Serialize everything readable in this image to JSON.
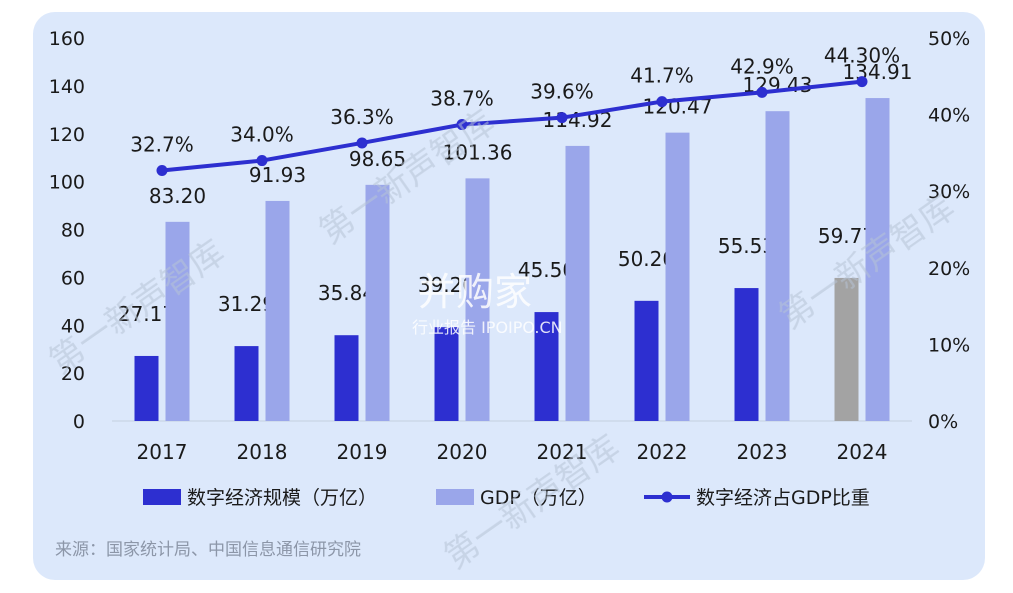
{
  "chart_data": {
    "type": "bar",
    "categories": [
      "2017",
      "2018",
      "2019",
      "2020",
      "2021",
      "2022",
      "2023",
      "2024"
    ],
    "series": [
      {
        "name": "数字经济规模（万亿）",
        "type": "bar",
        "axis": "left",
        "values": [
          27.17,
          31.29,
          35.84,
          39.2,
          45.5,
          50.2,
          55.53,
          59.77
        ],
        "labels": [
          "27.17",
          "31.29",
          "35.84",
          "39.20",
          "45.50",
          "50.20",
          "55.53",
          "59.77"
        ],
        "color": "#2d2fd0",
        "last_bar_color": "#a3a3a3"
      },
      {
        "name": "GDP（万亿）",
        "type": "bar",
        "axis": "left",
        "values": [
          83.2,
          91.93,
          98.65,
          101.36,
          114.92,
          120.47,
          129.43,
          134.91
        ],
        "labels": [
          "83.20",
          "91.93",
          "98.65",
          "101.36",
          "114.92",
          "120.47",
          "129.43",
          "134.91"
        ],
        "color": "#9aa6ea"
      },
      {
        "name": "数字经济占GDP比重",
        "type": "line",
        "axis": "right",
        "values": [
          32.7,
          34.0,
          36.3,
          38.7,
          39.6,
          41.7,
          42.9,
          44.3
        ],
        "labels": [
          "32.7%",
          "34.0%",
          "36.3%",
          "38.7%",
          "39.6%",
          "41.7%",
          "42.9%",
          "44.30%"
        ],
        "color": "#2d2fd0"
      }
    ],
    "y_left": {
      "ylim": [
        0,
        160
      ],
      "ticks": [
        "0",
        "20",
        "40",
        "60",
        "80",
        "100",
        "120",
        "140",
        "160"
      ]
    },
    "y_right": {
      "ylim": [
        0,
        50
      ],
      "ticks": [
        "0%",
        "10%",
        "20%",
        "30%",
        "40%",
        "50%"
      ]
    },
    "grid": false,
    "legend_position": "bottom"
  },
  "source": "来源：国家统计局、中国信息通信研究院",
  "watermark": {
    "title": "并购家",
    "subtitle": "行业报告 IPOIPO.CN",
    "repeated": "第一新声智库"
  }
}
